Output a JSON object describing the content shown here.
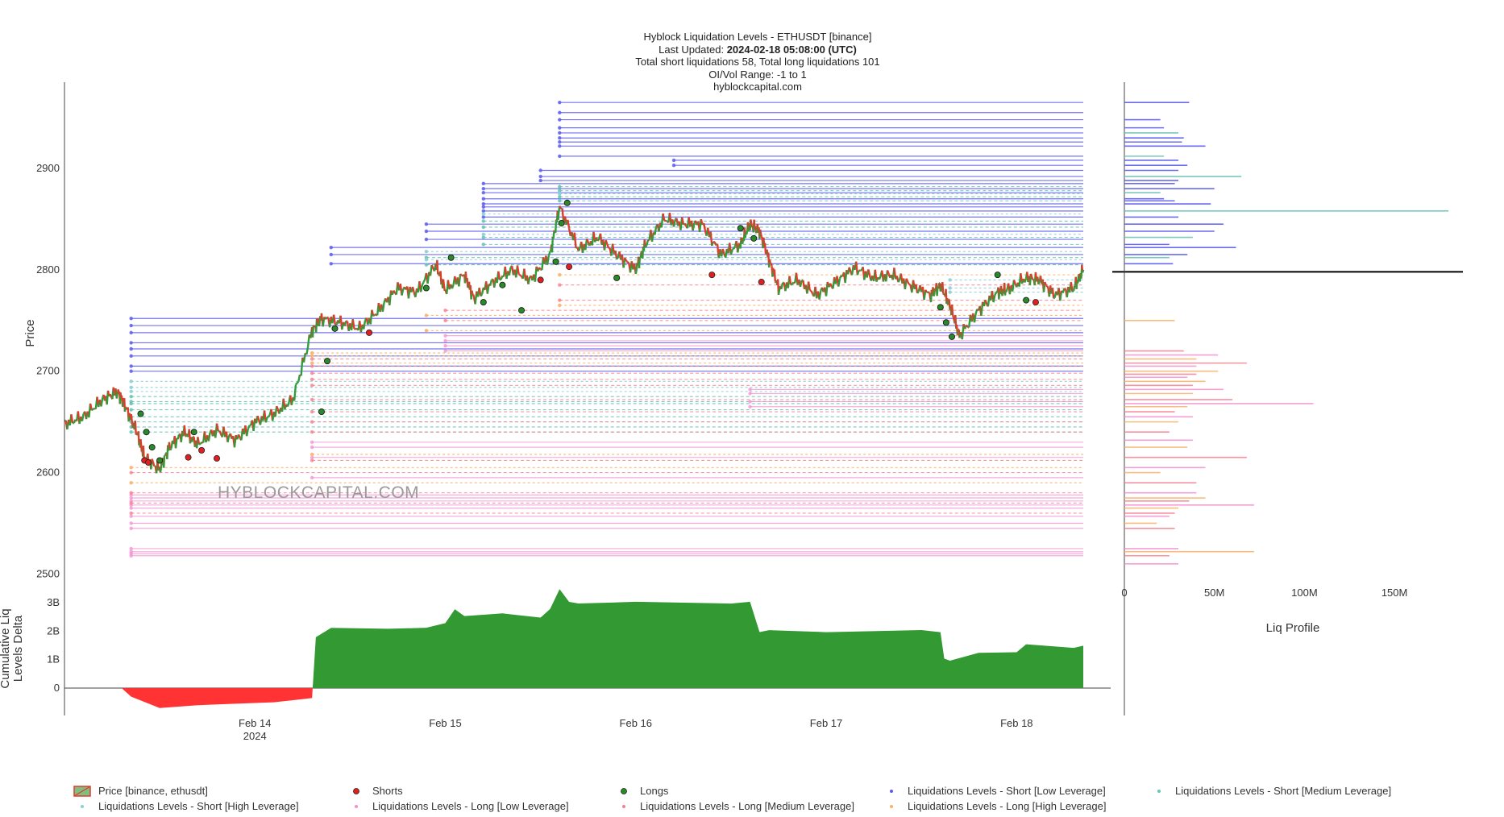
{
  "title": {
    "line1": "Hyblock Liquidation Levels - ETHUSDT [binance]",
    "updated_label": "Last Updated: ",
    "updated_value": "2024-02-18 05:08:00 (UTC)",
    "line3": "Total short liquidations 58, Total long liquidations 101",
    "line4": "OI/Vol Range: -1 to 1",
    "line5": "hyblockcapital.com"
  },
  "watermark": "HYBLOCKCAPITAL.COM",
  "colors": {
    "price_up": "#2e9e3a",
    "price_down": "#e23b2e",
    "short_low": "#5b5bef",
    "short_medium": "#6cc3b8",
    "short_high": "#8ccfd6",
    "long_low": "#f48fd0",
    "long_medium": "#f77f8e",
    "long_high": "#f9b26b",
    "shorts_marker": "#e02020",
    "longs_marker": "#2a8a2a",
    "delta_pos": "#339933",
    "delta_neg": "#ff3333",
    "current_price_line": "#000000"
  },
  "chart_data": [
    {
      "type": "line",
      "name": "price-panel",
      "ylabel": "Price",
      "y_ticks": [
        2500,
        2600,
        2700,
        2800,
        2900
      ],
      "ylim": [
        2490,
        2985
      ],
      "x_ticks": [
        "Feb 14",
        "Feb 15",
        "Feb 16",
        "Feb 17",
        "Feb 18"
      ],
      "x_tick_sub": "2024",
      "x_days_range": [
        13.0,
        18.35
      ],
      "current_price": 2798,
      "price": {
        "name": "Price [binance, ethusdt]",
        "x": [
          13.0,
          13.1,
          13.2,
          13.28,
          13.32,
          13.38,
          13.42,
          13.5,
          13.55,
          13.63,
          13.7,
          13.8,
          13.9,
          14.0,
          14.1,
          14.2,
          14.3,
          14.35,
          14.45,
          14.55,
          14.65,
          14.75,
          14.85,
          14.95,
          15.0,
          15.1,
          15.15,
          15.25,
          15.35,
          15.45,
          15.55,
          15.6,
          15.7,
          15.8,
          15.9,
          16.0,
          16.05,
          16.15,
          16.25,
          16.35,
          16.45,
          16.55,
          16.6,
          16.65,
          16.7,
          16.75,
          16.85,
          16.95,
          17.05,
          17.15,
          17.25,
          17.35,
          17.45,
          17.55,
          17.6,
          17.65,
          17.7,
          17.8,
          17.9,
          17.95,
          18.05,
          18.12,
          18.2,
          18.3,
          18.35
        ],
        "values": [
          2648,
          2655,
          2672,
          2680,
          2665,
          2640,
          2615,
          2603,
          2625,
          2640,
          2628,
          2642,
          2632,
          2650,
          2658,
          2672,
          2740,
          2752,
          2748,
          2742,
          2760,
          2782,
          2778,
          2805,
          2780,
          2795,
          2772,
          2788,
          2800,
          2790,
          2815,
          2862,
          2820,
          2832,
          2815,
          2800,
          2825,
          2850,
          2845,
          2845,
          2815,
          2825,
          2845,
          2838,
          2810,
          2782,
          2790,
          2775,
          2788,
          2802,
          2792,
          2795,
          2784,
          2775,
          2785,
          2765,
          2735,
          2760,
          2778,
          2780,
          2792,
          2790,
          2775,
          2782,
          2800
        ]
      },
      "shorts_markers": {
        "name": "Shorts",
        "x": [
          13.42,
          13.44,
          13.65,
          13.72,
          13.8,
          14.6,
          15.5,
          15.65,
          16.4,
          16.66,
          18.1
        ],
        "values": [
          2612,
          2610,
          2615,
          2622,
          2614,
          2738,
          2790,
          2803,
          2795,
          2788,
          2768
        ]
      },
      "longs_markers": {
        "name": "Longs",
        "x": [
          13.4,
          13.43,
          13.46,
          13.5,
          13.68,
          14.35,
          14.38,
          14.42,
          14.9,
          15.03,
          15.2,
          15.3,
          15.4,
          15.58,
          15.61,
          15.64,
          15.9,
          16.55,
          16.62,
          17.6,
          17.63,
          17.66,
          17.9,
          18.05
        ],
        "values": [
          2658,
          2640,
          2625,
          2612,
          2640,
          2660,
          2710,
          2742,
          2782,
          2812,
          2768,
          2785,
          2760,
          2808,
          2846,
          2866,
          2792,
          2841,
          2831,
          2763,
          2748,
          2734,
          2795,
          2770
        ]
      },
      "liquidation_levels": {
        "short_low": {
          "name": "Liquidations Levels - Short [Low Leverage]",
          "levels": [
            2752,
            2745,
            2738,
            2728,
            2722,
            2715,
            2705,
            2700,
            2822,
            2815,
            2806,
            2830,
            2838,
            2845,
            2852,
            2858,
            2862,
            2865,
            2870,
            2876,
            2880,
            2885,
            2888,
            2892,
            2898,
            2903,
            2908,
            2912,
            2922,
            2926,
            2930,
            2935,
            2940,
            2948,
            2955,
            2965
          ],
          "start_x": [
            13.35,
            13.35,
            13.35,
            13.35,
            13.35,
            13.35,
            13.35,
            13.35,
            14.4,
            14.4,
            14.4,
            14.9,
            14.9,
            14.9,
            15.2,
            15.2,
            15.2,
            15.2,
            15.2,
            15.2,
            15.2,
            15.2,
            15.5,
            15.5,
            15.5,
            16.2,
            16.2,
            15.6,
            15.6,
            15.6,
            15.6,
            15.6,
            15.6,
            15.6,
            15.6,
            15.6
          ]
        },
        "short_medium": {
          "name": "Liquidations Levels - Short [Medium Leverage]",
          "levels": [
            2675,
            2670,
            2668,
            2662,
            2655,
            2650,
            2645,
            2640,
            2812,
            2805,
            2825,
            2832,
            2842,
            2848,
            2868,
            2872,
            2878,
            2882
          ],
          "start_x": [
            13.35,
            13.35,
            13.35,
            13.35,
            13.35,
            13.35,
            13.35,
            13.35,
            14.9,
            14.9,
            15.2,
            15.2,
            15.2,
            15.2,
            15.6,
            15.6,
            15.6,
            15.6
          ]
        },
        "short_high": {
          "name": "Liquidations Levels - Short [High Leverage]",
          "levels": [
            2690,
            2684,
            2680,
            2818,
            2810,
            2835,
            2855,
            2875,
            2790,
            2782,
            2778
          ],
          "start_x": [
            13.35,
            13.35,
            13.35,
            14.9,
            14.9,
            15.2,
            15.2,
            15.6,
            17.65,
            17.65,
            17.65
          ]
        },
        "long_low": {
          "name": "Liquidations Levels - Long [Low Leverage]",
          "levels": [
            2525,
            2522,
            2520,
            2518,
            2545,
            2550,
            2557,
            2565,
            2568,
            2572,
            2575,
            2578,
            2595,
            2615,
            2625,
            2630,
            2665,
            2670,
            2678,
            2682,
            2720,
            2725,
            2730,
            2735
          ],
          "start_x": [
            13.35,
            13.35,
            13.35,
            13.35,
            13.35,
            13.35,
            13.35,
            13.35,
            13.35,
            13.35,
            13.35,
            13.35,
            14.3,
            14.3,
            14.3,
            14.3,
            16.6,
            16.6,
            16.6,
            16.6,
            15.0,
            15.0,
            15.0,
            15.0
          ]
        },
        "long_medium": {
          "name": "Liquidations Levels - Long [Medium Leverage]",
          "levels": [
            2560,
            2570,
            2580,
            2600,
            2612,
            2640,
            2650,
            2660,
            2672,
            2686,
            2692,
            2698,
            2705,
            2712,
            2750,
            2760,
            2770,
            2785
          ],
          "start_x": [
            13.35,
            13.35,
            13.35,
            13.35,
            14.3,
            14.3,
            14.3,
            14.3,
            14.3,
            14.3,
            14.3,
            14.3,
            14.3,
            14.3,
            15.0,
            15.0,
            15.6,
            15.6
          ]
        },
        "long_high": {
          "name": "Liquidations Levels - Long [High Leverage]",
          "levels": [
            2590,
            2605,
            2618,
            2708,
            2715,
            2718,
            2740,
            2755,
            2765,
            2795
          ],
          "start_x": [
            13.35,
            13.35,
            14.3,
            14.3,
            14.3,
            14.3,
            14.9,
            14.9,
            15.6,
            15.6
          ]
        }
      }
    },
    {
      "type": "area",
      "name": "cumulative-delta-panel",
      "ylabel": "Cumulative Liq Levels Delta",
      "y_ticks": [
        0,
        1,
        2,
        3
      ],
      "y_tick_labels": [
        "0",
        "1B",
        "2B",
        "3B"
      ],
      "ylim": [
        -0.8,
        3.4
      ],
      "x": [
        13.0,
        13.3,
        13.35,
        13.5,
        13.7,
        13.9,
        14.1,
        14.3,
        14.32,
        14.4,
        14.7,
        14.9,
        15.0,
        15.05,
        15.1,
        15.3,
        15.5,
        15.55,
        15.6,
        15.65,
        15.7,
        16.0,
        16.5,
        16.6,
        16.65,
        16.7,
        17.0,
        17.5,
        17.6,
        17.62,
        17.65,
        17.8,
        18.0,
        18.05,
        18.3,
        18.35
      ],
      "values": [
        0,
        0,
        -0.3,
        -0.7,
        -0.6,
        -0.55,
        -0.5,
        -0.35,
        1.8,
        2.1,
        2.1,
        2.1,
        2.3,
        2.75,
        2.55,
        2.6,
        2.5,
        2.75,
        3.5,
        3.0,
        3.0,
        3.0,
        3.0,
        3.0,
        2.0,
        2.0,
        2.0,
        2.0,
        2.0,
        1.0,
        1.0,
        1.2,
        1.3,
        1.5,
        1.45,
        1.45
      ]
    },
    {
      "type": "bar",
      "name": "liq-profile-panel",
      "xlabel": "Liq Profile",
      "x_ticks": [
        0,
        50,
        100,
        150
      ],
      "x_tick_labels": [
        "0",
        "50M",
        "100M",
        "150M"
      ],
      "xlim": [
        0,
        188
      ],
      "orientation": "horizontal",
      "short_bars": {
        "levels": [
          2965,
          2948,
          2940,
          2935,
          2930,
          2926,
          2922,
          2912,
          2908,
          2903,
          2898,
          2892,
          2888,
          2885,
          2880,
          2876,
          2870,
          2868,
          2865,
          2858,
          2852,
          2845,
          2838,
          2832,
          2825,
          2822,
          2815,
          2812,
          2806
        ],
        "values": [
          36,
          20,
          22,
          30,
          33,
          32,
          45,
          22,
          30,
          35,
          30,
          65,
          30,
          28,
          50,
          20,
          22,
          28,
          48,
          180,
          30,
          55,
          50,
          38,
          25,
          62,
          35,
          25,
          27
        ]
      },
      "long_bars": {
        "levels": [
          2750,
          2720,
          2716,
          2712,
          2708,
          2705,
          2700,
          2697,
          2694,
          2690,
          2686,
          2682,
          2678,
          2672,
          2668,
          2665,
          2660,
          2655,
          2650,
          2640,
          2632,
          2625,
          2615,
          2605,
          2600,
          2590,
          2580,
          2575,
          2572,
          2568,
          2565,
          2560,
          2557,
          2550,
          2545,
          2525,
          2522,
          2518,
          2510
        ],
        "values": [
          28,
          33,
          52,
          40,
          68,
          40,
          52,
          40,
          35,
          45,
          38,
          55,
          38,
          60,
          105,
          35,
          28,
          38,
          30,
          25,
          38,
          35,
          68,
          45,
          20,
          40,
          40,
          45,
          36,
          72,
          30,
          28,
          25,
          18,
          28,
          30,
          72,
          25,
          30
        ]
      }
    }
  ],
  "legend": {
    "price": "Price [binance, ethusdt]",
    "shorts": "Shorts",
    "longs": "Longs",
    "short_low": "Liquidations Levels - Short [Low Leverage]",
    "short_medium": "Liquidations Levels - Short [Medium Leverage]",
    "short_high": "Liquidations Levels - Short [High Leverage]",
    "long_low": "Liquidations Levels - Long [Low Leverage]",
    "long_medium": "Liquidations Levels - Long [Medium Leverage]",
    "long_high": "Liquidations Levels - Long [High Leverage]"
  }
}
